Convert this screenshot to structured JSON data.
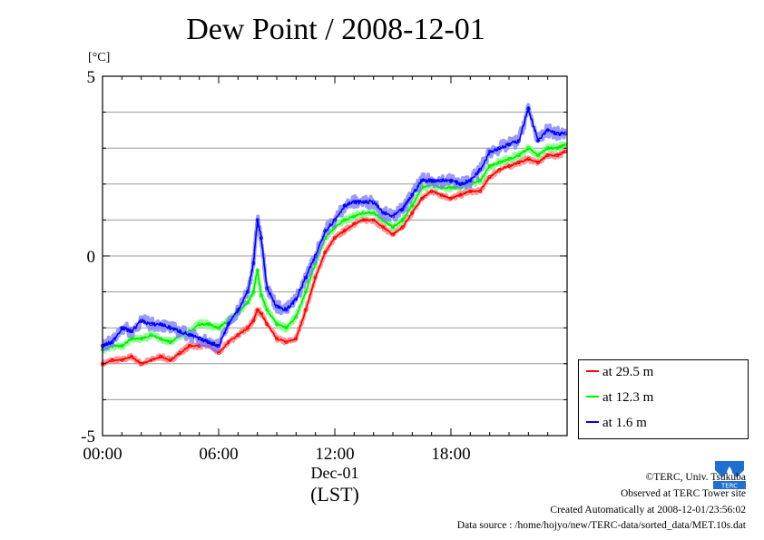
{
  "title": "Dew Point / 2008-12-01",
  "yunit": "[°C]",
  "xlabel_date": "Dec-01",
  "xlabel_tz": "(LST)",
  "footer": {
    "copyright": "©TERC, Univ. Tsukuba",
    "observed": "Observed at TERC Tower site",
    "created": "Created Automatically at 2008-12-01/23:56:02",
    "source": "Data source : /home/hojyo/new/TERC-data/sorted_data/MET.10s.dat"
  },
  "logo_text": "TERC",
  "chart_data": {
    "type": "line",
    "title": "Dew Point / 2008-12-01",
    "ylabel": "[°C]",
    "xlabel": "Dec-01 (LST)",
    "xlim": [
      0,
      24
    ],
    "ylim": [
      -5,
      5
    ],
    "x_ticks": [
      0,
      6,
      12,
      18
    ],
    "x_tick_labels": [
      "00:00",
      "06:00",
      "12:00",
      "18:00"
    ],
    "y_ticks": [
      -5,
      0,
      5
    ],
    "y_tick_labels": [
      "-5",
      "0",
      "5"
    ],
    "grid": true,
    "legend_position": "bottom-right outside",
    "x": [
      0,
      0.5,
      1,
      1.5,
      2,
      2.5,
      3,
      3.5,
      4,
      4.5,
      5,
      5.5,
      6,
      6.5,
      7,
      7.5,
      7.8,
      8,
      8.2,
      8.5,
      9,
      9.5,
      10,
      10.5,
      11,
      11.5,
      12,
      12.5,
      13,
      13.5,
      14,
      14.5,
      15,
      15.5,
      16,
      16.5,
      17,
      17.5,
      18,
      18.5,
      19,
      19.5,
      20,
      20.5,
      21,
      21.5,
      22,
      22.5,
      23,
      23.5,
      23.9
    ],
    "series": [
      {
        "name": "at 29.5 m",
        "color": "#ff0000",
        "values": [
          -3.0,
          -2.9,
          -2.9,
          -2.8,
          -3.0,
          -2.9,
          -2.8,
          -2.9,
          -2.7,
          -2.5,
          -2.5,
          -2.5,
          -2.7,
          -2.4,
          -2.2,
          -2.0,
          -1.8,
          -1.5,
          -1.6,
          -1.9,
          -2.3,
          -2.4,
          -2.3,
          -1.5,
          -0.6,
          0.1,
          0.5,
          0.7,
          0.9,
          1.0,
          1.0,
          0.8,
          0.6,
          0.8,
          1.2,
          1.6,
          1.8,
          1.7,
          1.6,
          1.7,
          1.8,
          1.8,
          2.2,
          2.4,
          2.5,
          2.6,
          2.7,
          2.6,
          2.8,
          2.8,
          2.9
        ]
      },
      {
        "name": "at 12.3 m",
        "color": "#00ee00",
        "values": [
          -2.6,
          -2.5,
          -2.5,
          -2.3,
          -2.3,
          -2.2,
          -2.3,
          -2.4,
          -2.2,
          -2.1,
          -1.9,
          -1.9,
          -2.0,
          -1.8,
          -1.6,
          -1.3,
          -1.0,
          -0.4,
          -1.1,
          -1.5,
          -1.9,
          -2.0,
          -1.7,
          -1.0,
          -0.2,
          0.5,
          0.8,
          1.0,
          1.1,
          1.2,
          1.2,
          1.0,
          0.8,
          1.0,
          1.4,
          1.9,
          2.0,
          1.9,
          1.9,
          1.9,
          2.0,
          2.1,
          2.5,
          2.6,
          2.7,
          2.8,
          3.0,
          2.8,
          3.0,
          3.0,
          3.1
        ]
      },
      {
        "name": "at 1.6 m",
        "color": "#0000ff",
        "values": [
          -2.5,
          -2.4,
          -2.0,
          -2.1,
          -1.8,
          -1.9,
          -1.9,
          -2.0,
          -2.1,
          -2.2,
          -2.3,
          -2.4,
          -2.5,
          -1.9,
          -1.5,
          -1.0,
          -0.2,
          1.0,
          0.5,
          -0.9,
          -1.4,
          -1.5,
          -1.2,
          -0.6,
          0.0,
          0.7,
          1.0,
          1.4,
          1.5,
          1.5,
          1.5,
          1.2,
          1.1,
          1.3,
          1.7,
          2.1,
          2.1,
          2.1,
          2.1,
          2.0,
          2.1,
          2.4,
          2.9,
          3.0,
          3.1,
          3.2,
          4.1,
          3.2,
          3.5,
          3.4,
          3.4
        ]
      }
    ]
  }
}
